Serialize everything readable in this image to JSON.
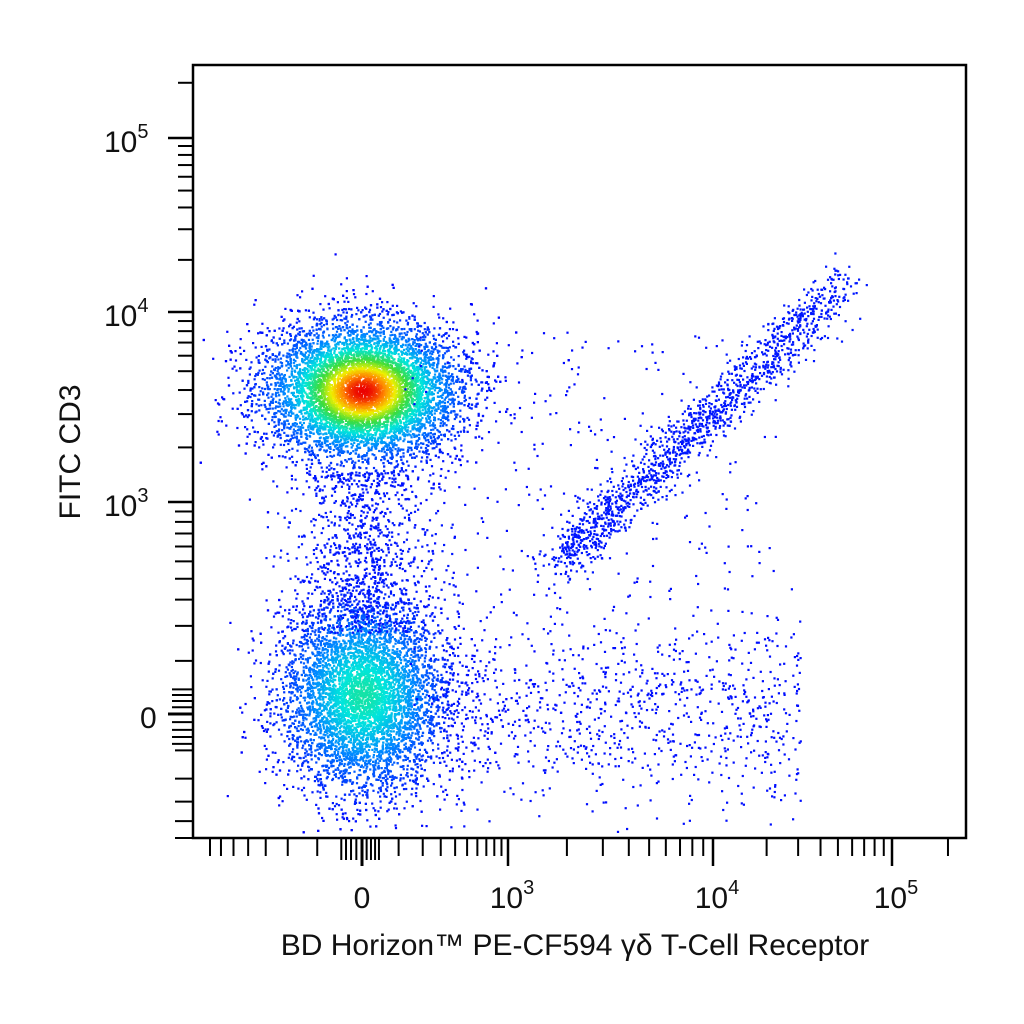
{
  "chart_data": {
    "type": "scatter",
    "title": "",
    "xlabel": "BD Horizon™ PE-CF594  γδ T-Cell Receptor",
    "ylabel": "FITC CD3",
    "x_scale": "biexponential",
    "y_scale": "biexponential",
    "x_ticks": [
      {
        "base": "0",
        "exp": ""
      },
      {
        "base": "10",
        "exp": "3"
      },
      {
        "base": "10",
        "exp": "4"
      },
      {
        "base": "10",
        "exp": "5"
      }
    ],
    "y_ticks": [
      {
        "base": "0",
        "exp": ""
      },
      {
        "base": "10",
        "exp": "3"
      },
      {
        "base": "10",
        "exp": "4"
      },
      {
        "base": "10",
        "exp": "5"
      }
    ],
    "x_range": [
      -700,
      250000
    ],
    "y_range": [
      -250,
      250000
    ],
    "grid": false,
    "legend": "none",
    "color_scale": "density (blue → cyan → green → yellow → red)",
    "populations": [
      {
        "description": "CD3+ γδ TCR− T cells",
        "center": {
          "x": 0,
          "y": 4000
        },
        "density_peak": "high (red)"
      },
      {
        "description": "CD3− γδ TCR− cells",
        "center": {
          "x": 0,
          "y": 0
        },
        "density_peak": "medium (cyan)"
      },
      {
        "description": "CD3+ γδ TCR+ T cells (diagonal)",
        "start": {
          "x": 2000,
          "y": 1000
        },
        "end": {
          "x": 50000,
          "y": 14000
        },
        "density_peak": "low (blue)"
      },
      {
        "description": "scattered CD3− γδ TCR+ events",
        "center": {
          "x": 3000,
          "y": 0
        },
        "density_peak": "low (blue)"
      }
    ]
  }
}
